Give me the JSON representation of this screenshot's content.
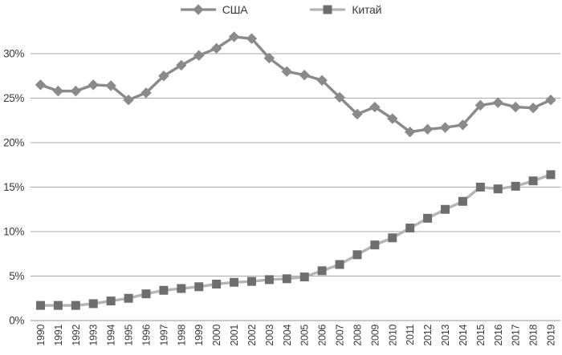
{
  "legend": {
    "items": [
      {
        "label": "США",
        "marker": "diamond"
      },
      {
        "label": "Китай",
        "marker": "square"
      }
    ]
  },
  "chart_data": {
    "type": "line",
    "title": "",
    "xlabel": "",
    "ylabel": "",
    "categories": [
      "1990",
      "1991",
      "1992",
      "1993",
      "1994",
      "1995",
      "1996",
      "1997",
      "1998",
      "1999",
      "2000",
      "2001",
      "2002",
      "2003",
      "2004",
      "2005",
      "2006",
      "2007",
      "2008",
      "2009",
      "2010",
      "2011",
      "2012",
      "2013",
      "2014",
      "2015",
      "2016",
      "2017",
      "2018",
      "2019"
    ],
    "series": [
      {
        "name": "США",
        "marker": "diamond",
        "line_color": "#8a8a8a",
        "marker_color": "#8a8a8a",
        "values": [
          26.5,
          25.8,
          25.8,
          26.5,
          26.4,
          24.8,
          25.6,
          27.5,
          28.7,
          29.8,
          30.6,
          31.9,
          31.7,
          29.5,
          28.0,
          27.6,
          27.0,
          25.1,
          23.2,
          24.0,
          22.7,
          21.2,
          21.5,
          21.7,
          22.0,
          24.2,
          24.5,
          24.0,
          23.9,
          24.8
        ]
      },
      {
        "name": "Китай",
        "marker": "square",
        "line_color": "#b5b5b5",
        "marker_color": "#6e6e6e",
        "values": [
          1.7,
          1.7,
          1.7,
          1.9,
          2.2,
          2.5,
          3.0,
          3.4,
          3.6,
          3.8,
          4.1,
          4.3,
          4.4,
          4.6,
          4.7,
          4.9,
          5.6,
          6.3,
          7.4,
          8.5,
          9.3,
          10.4,
          11.5,
          12.5,
          13.4,
          15.0,
          14.8,
          15.1,
          15.7,
          16.4
        ]
      }
    ],
    "yticks": [
      {
        "value": 0,
        "label": "0%"
      },
      {
        "value": 5,
        "label": "5%"
      },
      {
        "value": 10,
        "label": "10%"
      },
      {
        "value": 15,
        "label": "15%"
      },
      {
        "value": 20,
        "label": "20%"
      },
      {
        "value": 25,
        "label": "25%"
      },
      {
        "value": 30,
        "label": "30%"
      }
    ],
    "ylim": [
      0,
      33.3
    ],
    "grid": true,
    "legend_position": "top-center",
    "colors": {
      "grid": "#a8a8a8",
      "axis": "#949494",
      "tick_text": "#3a3a3a"
    }
  }
}
